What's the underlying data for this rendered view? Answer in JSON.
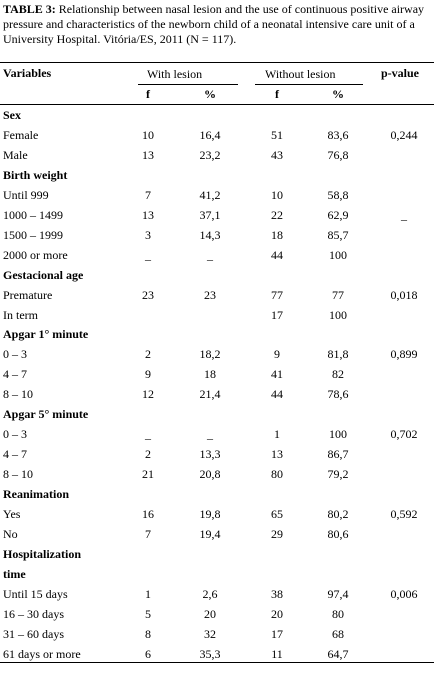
{
  "caption": {
    "label": "TABLE 3:",
    "text": "Relationship between nasal lesion and the use of continuous positive airway pressure and characteristics of the newborn child of a neonatal intensive care unit of a University Hospital. Vitória/ES, 2011 (N = 117)."
  },
  "header": {
    "variables": "Variables",
    "with_lesion": "With lesion",
    "without_lesion": "Without lesion",
    "p_value": "p-value",
    "f1": "f",
    "pct1": "%",
    "f2": "f",
    "pct2": "%"
  },
  "rows": [
    {
      "type": "section",
      "label": "Sex"
    },
    {
      "type": "data",
      "label": "Female",
      "f1": "10",
      "p1": "16,4",
      "f2": "51",
      "p2": "83,6",
      "pv": "0,244"
    },
    {
      "type": "data",
      "label": "Male",
      "f1": "13",
      "p1": "23,2",
      "f2": "43",
      "p2": "76,8",
      "pv": ""
    },
    {
      "type": "section",
      "label": "Birth weight"
    },
    {
      "type": "data",
      "label": "Until 999",
      "f1": "7",
      "p1": "41,2",
      "f2": "10",
      "p2": "58,8",
      "pv": ""
    },
    {
      "type": "data",
      "label": "1000 – 1499",
      "f1": "13",
      "p1": "37,1",
      "f2": "22",
      "p2": "62,9",
      "pv": "_"
    },
    {
      "type": "data",
      "label": "1500 – 1999",
      "f1": "3",
      "p1": "14,3",
      "f2": "18",
      "p2": "85,7",
      "pv": ""
    },
    {
      "type": "data",
      "label": "2000 or more",
      "f1": "_",
      "p1": "_",
      "f2": "44",
      "p2": "100",
      "pv": ""
    },
    {
      "type": "section",
      "label": "Gestacional age"
    },
    {
      "type": "data",
      "label": "Premature",
      "f1": "23",
      "p1": "23",
      "f2": "77",
      "p2": "77",
      "pv": "0,018"
    },
    {
      "type": "data",
      "label": "In term",
      "f1": "",
      "p1": "",
      "f2": "17",
      "p2": "100",
      "pv": ""
    },
    {
      "type": "section",
      "label": "Apgar 1° minute"
    },
    {
      "type": "data",
      "label": "0 – 3",
      "f1": "2",
      "p1": "18,2",
      "f2": "9",
      "p2": "81,8",
      "pv": "0,899"
    },
    {
      "type": "data",
      "label": "4 – 7",
      "f1": "9",
      "p1": "18",
      "f2": "41",
      "p2": "82",
      "pv": ""
    },
    {
      "type": "data",
      "label": "8 – 10",
      "f1": "12",
      "p1": "21,4",
      "f2": "44",
      "p2": "78,6",
      "pv": ""
    },
    {
      "type": "section",
      "label": "Apgar 5° minute"
    },
    {
      "type": "data",
      "label": "0 – 3",
      "f1": "_",
      "p1": "_",
      "f2": "1",
      "p2": "100",
      "pv": "0,702"
    },
    {
      "type": "data",
      "label": "4 – 7",
      "f1": "2",
      "p1": "13,3",
      "f2": "13",
      "p2": "86,7",
      "pv": ""
    },
    {
      "type": "data",
      "label": "8 – 10",
      "f1": "21",
      "p1": "20,8",
      "f2": "80",
      "p2": "79,2",
      "pv": ""
    },
    {
      "type": "section",
      "label": "Reanimation"
    },
    {
      "type": "data",
      "label": "Yes",
      "f1": "16",
      "p1": "19,8",
      "f2": "65",
      "p2": "80,2",
      "pv": "0,592"
    },
    {
      "type": "data",
      "label": "No",
      "f1": "7",
      "p1": "19,4",
      "f2": "29",
      "p2": "80,6",
      "pv": ""
    },
    {
      "type": "section",
      "label": "Hospitalization"
    },
    {
      "type": "section",
      "label": "time"
    },
    {
      "type": "data",
      "label": "Until 15 days",
      "f1": "1",
      "p1": "2,6",
      "f2": "38",
      "p2": "97,4",
      "pv": "0,006"
    },
    {
      "type": "data",
      "label": "16 – 30 days",
      "f1": "5",
      "p1": "20",
      "f2": "20",
      "p2": "80",
      "pv": ""
    },
    {
      "type": "data",
      "label": "31 – 60 days",
      "f1": "8",
      "p1": "32",
      "f2": "17",
      "p2": "68",
      "pv": ""
    },
    {
      "type": "data",
      "label": "61 days or more",
      "f1": "6",
      "p1": "35,3",
      "f2": "11",
      "p2": "64,7",
      "pv": ""
    }
  ]
}
